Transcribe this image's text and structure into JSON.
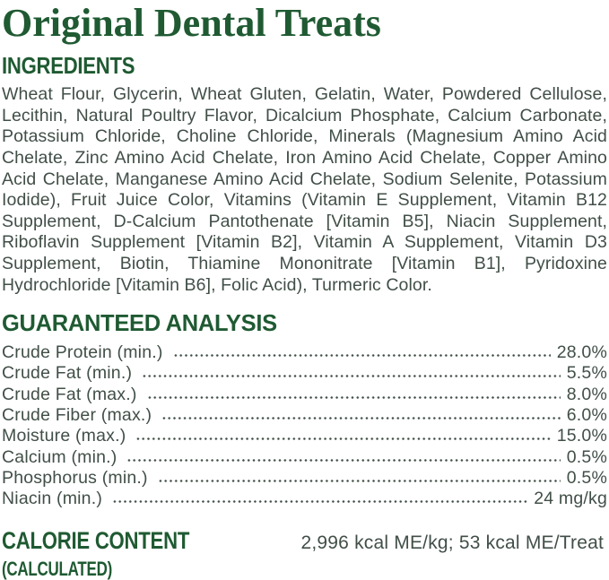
{
  "title": "Original Dental Treats",
  "colors": {
    "brand_green": "#1f5a32",
    "body_text": "#414f47"
  },
  "ingredients": {
    "heading": "INGREDIENTS",
    "text": "Wheat Flour, Glycerin, Wheat Gluten, Gelatin, Water, Powdered Cellulose, Lecithin, Natural Poultry Flavor, Dicalcium Phosphate, Calcium Carbonate, Potassium Chloride, Choline Chloride, Minerals (Magnesium Amino Acid Chelate, Zinc Amino Acid Chelate, Iron Amino Acid Chelate, Copper Amino Acid Chelate, Manganese Amino Acid Chelate, Sodium Selenite, Potassium Iodide), Fruit Juice Color, Vitamins (Vitamin E Supplement, Vitamin B12 Supplement, D-Calcium Pantothenate [Vitamin B5], Niacin Supplement, Riboflavin Supplement [Vitamin B2], Vitamin A Supplement, Vitamin D3 Supplement, Biotin, Thiamine Mononitrate [Vitamin B1], Pyridoxine Hydrochloride [Vitamin B6], Folic Acid), Turmeric Color."
  },
  "analysis": {
    "heading": "GUARANTEED ANALYSIS",
    "rows": [
      {
        "label": "Crude Protein (min.)",
        "value": "28.0%"
      },
      {
        "label": "Crude Fat (min.)",
        "value": "5.5%"
      },
      {
        "label": "Crude Fat (max.)",
        "value": "8.0%"
      },
      {
        "label": "Crude Fiber (max.)",
        "value": "6.0%"
      },
      {
        "label": "Moisture (max.)",
        "value": "15.0%"
      },
      {
        "label": "Calcium (min.)",
        "value": "0.5%"
      },
      {
        "label": "Phosphorus (min.)",
        "value": "0.5%"
      },
      {
        "label": "Niacin (min.)",
        "value": "24 mg/kg"
      }
    ]
  },
  "calories": {
    "heading": "CALORIE CONTENT",
    "subheading": "(CALCULATED)",
    "value": "2,996 kcal ME/kg; 53 kcal ME/Treat"
  }
}
